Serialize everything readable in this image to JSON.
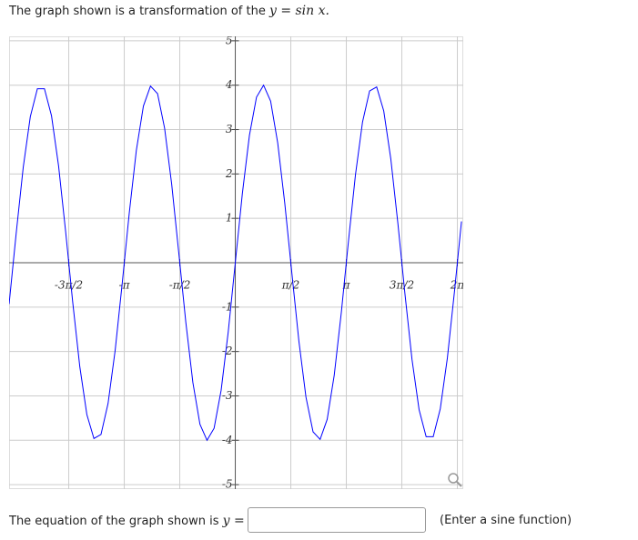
{
  "prompt_text": "The graph shown is a transformation of the",
  "prompt_math": "y = sin x.",
  "chart_data": {
    "type": "line",
    "color": "#0000ff",
    "grid": true,
    "xlim": [
      -6.4,
      6.45
    ],
    "ylim": [
      -5.1,
      5.1
    ],
    "xticks": [
      {
        "value": -4.7124,
        "label": "-3π/2"
      },
      {
        "value": -3.1416,
        "label": "-π"
      },
      {
        "value": -1.5708,
        "label": "-π/2"
      },
      {
        "value": 1.5708,
        "label": "π/2"
      },
      {
        "value": 3.1416,
        "label": "π"
      },
      {
        "value": 4.7124,
        "label": "3π/2"
      },
      {
        "value": 6.2832,
        "label": "2π"
      }
    ],
    "yticks": [
      -5,
      -4,
      -3,
      -2,
      -1,
      1,
      2,
      3,
      4,
      5
    ],
    "x": [
      -6.4,
      -6.2,
      -6,
      -5.8,
      -5.6,
      -5.4,
      -5.2,
      -5,
      -4.8,
      -4.6,
      -4.4,
      -4.2,
      -4,
      -3.8,
      -3.6,
      -3.4,
      -3.2,
      -3,
      -2.8,
      -2.6,
      -2.4,
      -2.2,
      -2,
      -1.8,
      -1.6,
      -1.4,
      -1.2,
      -1,
      -0.8,
      -0.6,
      -0.4,
      -0.2,
      0,
      0.2,
      0.4,
      0.6,
      0.8,
      1,
      1.2,
      1.4,
      1.6,
      1.8,
      2,
      2.2,
      2.4,
      2.6,
      2.8,
      3,
      3.2,
      3.4,
      3.6,
      3.8,
      4,
      4.2,
      4.4,
      4.6,
      4.8,
      5,
      5.2,
      5.4,
      5.6,
      5.8,
      6,
      6.2,
      6.4
    ],
    "values": [
      -0.93,
      0.66,
      2.15,
      3.29,
      3.92,
      3.92,
      3.31,
      2.18,
      0.7,
      -0.89,
      -2.34,
      -3.42,
      -3.96,
      -3.87,
      -3.17,
      -1.98,
      -0.47,
      1.12,
      2.53,
      3.53,
      3.98,
      3.81,
      3.03,
      1.77,
      0.23,
      -1.34,
      -2.7,
      -3.64,
      -4,
      -3.73,
      -2.87,
      -1.56,
      0,
      1.56,
      2.87,
      3.73,
      4,
      3.64,
      2.7,
      1.34,
      -0.23,
      -1.77,
      -3.03,
      -3.81,
      -3.98,
      -3.53,
      -2.53,
      -1.12,
      0.47,
      1.98,
      3.17,
      3.87,
      3.96,
      3.42,
      2.34,
      0.89,
      -0.7,
      -2.18,
      -3.31,
      -3.92,
      -3.92,
      -3.29,
      -2.15,
      -0.66,
      0.93
    ]
  },
  "answer_label": "The equation of the graph shown is",
  "answer_math": "y =",
  "answer_hint": "(Enter a sine function)"
}
